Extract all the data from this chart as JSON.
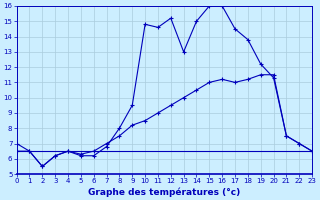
{
  "title": "Graphe des températures (°c)",
  "bg_color": "#cceeff",
  "grid_color": "#aaccdd",
  "line_color": "#0000bb",
  "x_min": 0,
  "x_max": 23,
  "y_min": 5,
  "y_max": 16,
  "line1_x": [
    0,
    1,
    2,
    3,
    4,
    5,
    6,
    7,
    8,
    9,
    10,
    11,
    12,
    13,
    14,
    15,
    16,
    17,
    18,
    19,
    20,
    21,
    22,
    23
  ],
  "line1_y": [
    7.0,
    6.5,
    5.5,
    6.2,
    6.5,
    6.2,
    6.2,
    6.8,
    8.0,
    9.5,
    14.8,
    14.6,
    15.2,
    13.0,
    15.0,
    16.0,
    16.0,
    14.5,
    13.8,
    12.2,
    11.3,
    7.5,
    7.0,
    6.5
  ],
  "line2_x": [
    0,
    1,
    2,
    3,
    4,
    5,
    6,
    7,
    8,
    9,
    10,
    11,
    12,
    13,
    14,
    15,
    16,
    17,
    18,
    19,
    20,
    21,
    22,
    23
  ],
  "line2_y": [
    6.5,
    6.5,
    6.5,
    6.5,
    6.5,
    6.5,
    6.5,
    6.5,
    6.5,
    6.5,
    6.5,
    6.5,
    6.5,
    6.5,
    6.5,
    6.5,
    6.5,
    6.5,
    6.5,
    6.5,
    6.5,
    6.5,
    6.5,
    6.5
  ],
  "line3_x": [
    0,
    1,
    2,
    3,
    4,
    5,
    6,
    7,
    8,
    9,
    10,
    11,
    12,
    13,
    14,
    15,
    16,
    17,
    18,
    19,
    20,
    21,
    22,
    23
  ],
  "line3_y": [
    6.5,
    6.5,
    5.5,
    6.2,
    6.5,
    6.3,
    6.5,
    7.0,
    7.5,
    8.2,
    8.5,
    9.0,
    9.5,
    10.0,
    10.5,
    11.0,
    11.2,
    11.0,
    11.2,
    11.5,
    11.5,
    7.5,
    7.0,
    6.5
  ]
}
